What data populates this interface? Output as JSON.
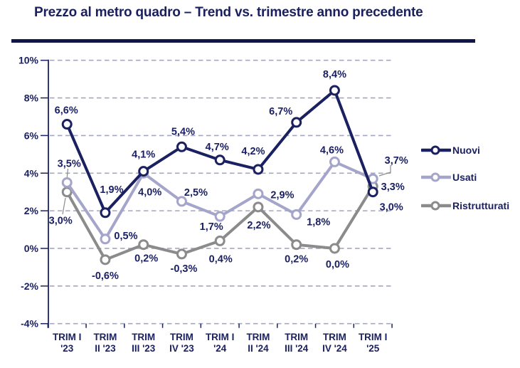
{
  "title": "Prezzo al metro quadro – Trend vs. trimestre anno precedente",
  "chart_data": {
    "type": "line",
    "title": "Prezzo al metro quadro – Trend vs. trimestre anno precedente",
    "categories": [
      "TRIM I '23",
      "TRIM II '23",
      "TRIM III '23",
      "TRIM IV '23",
      "TRIM I '24",
      "TRIM II '24",
      "TRIM III '24",
      "TRIM IV '24",
      "TRIM I '25"
    ],
    "category_label_lines": [
      [
        "TRIM I",
        "'23"
      ],
      [
        "TRIM",
        "II '23"
      ],
      [
        "TRIM",
        "III '23"
      ],
      [
        "TRIM",
        "IV '23"
      ],
      [
        "TRIM I",
        "'24"
      ],
      [
        "TRIM",
        "II '24"
      ],
      [
        "TRIM",
        "III '24"
      ],
      [
        "TRIM",
        "IV '24"
      ],
      [
        "TRIM I",
        "'25"
      ]
    ],
    "y_axis": {
      "min": -4,
      "max": 10,
      "step": 2,
      "tick_labels": [
        "10%",
        "8%",
        "6%",
        "4%",
        "2%",
        "0%",
        "-2%",
        "-4%"
      ],
      "grid": "dashed"
    },
    "legend_position": "right",
    "series": [
      {
        "name": "Nuovi",
        "color": "#1A2060",
        "values": [
          6.6,
          1.9,
          4.1,
          5.4,
          4.7,
          4.2,
          6.7,
          8.4,
          3.0
        ],
        "labels": [
          "6,6%",
          "1,9%",
          "4,1%",
          "5,4%",
          "4,7%",
          "4,2%",
          "6,7%",
          "8,4%",
          "3,0%"
        ]
      },
      {
        "name": "Usati",
        "color": "#A5A5CB",
        "values": [
          3.5,
          0.5,
          4.0,
          2.5,
          1.7,
          2.9,
          1.8,
          4.6,
          3.7
        ],
        "labels": [
          "3,5%",
          "0,5%",
          "4,0%",
          "2,5%",
          "1,7%",
          "2,9%",
          "1,8%",
          "4,6%",
          "3,7%"
        ]
      },
      {
        "name": "Ristrutturati",
        "color": "#8B8B8B",
        "values": [
          3.0,
          -0.6,
          0.2,
          -0.3,
          0.4,
          2.2,
          0.2,
          0.0,
          3.3
        ],
        "labels": [
          "3,0%",
          "-0,6%",
          "0,2%",
          "-0,3%",
          "0,4%",
          "2,2%",
          "0,2%",
          "0,0%",
          "3,3%"
        ]
      }
    ],
    "text_color": "#1B2163"
  }
}
